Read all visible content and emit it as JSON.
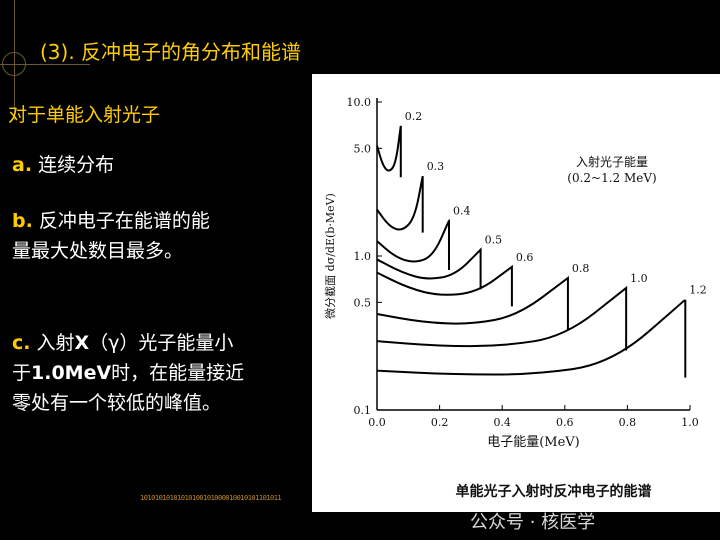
{
  "slide": {
    "title": "(3).  反冲电子的角分布和能谱",
    "subtitle": "对于单能入射光子",
    "item_a": {
      "label": "a.",
      "text": " 连续分布"
    },
    "item_b": {
      "label": "b.",
      "line1": " 反冲电子在能谱的能",
      "line2": "量最大处数目最多。"
    },
    "item_c": {
      "label": "c.",
      "line1_pre": " 入射",
      "line1_bold": "X",
      "line1_post": "（γ）光子能量小",
      "line2_pre": "于",
      "line2_bold": "1.0MeV",
      "line2_post": "时，在能量接近",
      "line3": "零处有一个较低的峰值。"
    },
    "binary_text": "10101010101010100101000010010101101011",
    "watermark": "公众号 · 核医学"
  },
  "colors": {
    "accent": "#ffcc00",
    "text": "#ffffff",
    "background": "#000000",
    "curve": "#000000"
  },
  "chart_data": {
    "type": "line",
    "caption": "单能光子入射时反冲电子的能谱",
    "xlabel": "电子能量(MeV)",
    "ylabel": "微分截面 dσ/dE(b·MeV)",
    "legend_title": "入射光子能量",
    "legend_range": "(0.2~1.2 MeV)",
    "xscale": "linear",
    "yscale": "log",
    "xlim": [
      0,
      1.0
    ],
    "ylim": [
      0.1,
      10
    ],
    "x_ticks": [
      {
        "v": 0.0,
        "t": "0.0"
      },
      {
        "v": 0.2,
        "t": "0.2"
      },
      {
        "v": 0.4,
        "t": "0.4"
      },
      {
        "v": 0.6,
        "t": "0.6"
      },
      {
        "v": 0.8,
        "t": "0.8"
      },
      {
        "v": 1.0,
        "t": "1.0"
      }
    ],
    "y_ticks": [
      {
        "v": 10,
        "t": "10.0"
      },
      {
        "v": 5,
        "t": "5.0"
      },
      {
        "v": 1,
        "t": "1.0"
      },
      {
        "v": 0.5,
        "t": "0.5"
      },
      {
        "v": 0.1,
        "t": "0.1"
      }
    ],
    "series": [
      {
        "name": "0.2",
        "label": "0.2",
        "edge": 0.076,
        "x": [
          0.0,
          0.02,
          0.04,
          0.06,
          0.076
        ],
        "y": [
          5.2,
          3.8,
          3.5,
          4.0,
          7.0
        ]
      },
      {
        "name": "0.3",
        "label": "0.3",
        "edge": 0.146,
        "x": [
          0.0,
          0.04,
          0.08,
          0.12,
          0.146
        ],
        "y": [
          2.0,
          1.55,
          1.45,
          1.75,
          3.3
        ]
      },
      {
        "name": "0.4",
        "label": "0.4",
        "edge": 0.23,
        "x": [
          0.0,
          0.06,
          0.12,
          0.18,
          0.23
        ],
        "y": [
          1.25,
          0.98,
          0.9,
          1.0,
          1.7
        ]
      },
      {
        "name": "0.5",
        "label": "0.5",
        "edge": 0.331,
        "x": [
          0.0,
          0.08,
          0.16,
          0.25,
          0.331
        ],
        "y": [
          0.95,
          0.78,
          0.7,
          0.75,
          1.1
        ]
      },
      {
        "name": "0.6",
        "label": "0.6",
        "edge": 0.431,
        "x": [
          0.0,
          0.1,
          0.2,
          0.32,
          0.431
        ],
        "y": [
          0.78,
          0.62,
          0.55,
          0.58,
          0.85
        ]
      },
      {
        "name": "0.8",
        "label": "0.8",
        "edge": 0.61,
        "x": [
          0.0,
          0.15,
          0.3,
          0.45,
          0.61
        ],
        "y": [
          0.42,
          0.37,
          0.36,
          0.41,
          0.72
        ]
      },
      {
        "name": "1.0",
        "label": "1.0",
        "edge": 0.796,
        "x": [
          0.0,
          0.2,
          0.4,
          0.6,
          0.796
        ],
        "y": [
          0.28,
          0.26,
          0.26,
          0.3,
          0.62
        ]
      },
      {
        "name": "1.2",
        "label": "1.2",
        "edge": 0.985,
        "x": [
          0.0,
          0.25,
          0.5,
          0.75,
          0.985
        ],
        "y": [
          0.18,
          0.17,
          0.17,
          0.2,
          0.52
        ]
      }
    ]
  }
}
